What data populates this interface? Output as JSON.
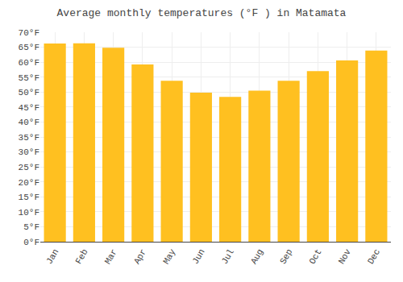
{
  "chart_data": {
    "type": "bar",
    "title": "Average monthly temperatures (°F ) in Matamata",
    "categories": [
      "Jan",
      "Feb",
      "Mar",
      "Apr",
      "May",
      "Jun",
      "Jul",
      "Aug",
      "Sep",
      "Oct",
      "Nov",
      "Dec"
    ],
    "values": [
      66.2,
      66.3,
      64.8,
      59.2,
      53.8,
      49.8,
      48.4,
      50.5,
      53.8,
      57.0,
      60.6,
      63.9
    ],
    "color": "#FFC020",
    "ylim": [
      0,
      70
    ],
    "yticks": [
      {
        "value": 0,
        "label": "0°F"
      },
      {
        "value": 5,
        "label": "5°F"
      },
      {
        "value": 10,
        "label": "10°F"
      },
      {
        "value": 15,
        "label": "15°F"
      },
      {
        "value": 20,
        "label": "20°F"
      },
      {
        "value": 25,
        "label": "25°F"
      },
      {
        "value": 30,
        "label": "30°F"
      },
      {
        "value": 35,
        "label": "35°F"
      },
      {
        "value": 40,
        "label": "40°F"
      },
      {
        "value": 45,
        "label": "45°F"
      },
      {
        "value": 50,
        "label": "50°F"
      },
      {
        "value": 55,
        "label": "55°F"
      },
      {
        "value": 60,
        "label": "60°F"
      },
      {
        "value": 65,
        "label": "65°F"
      },
      {
        "value": 70,
        "label": "70°F"
      }
    ],
    "grid": true
  }
}
